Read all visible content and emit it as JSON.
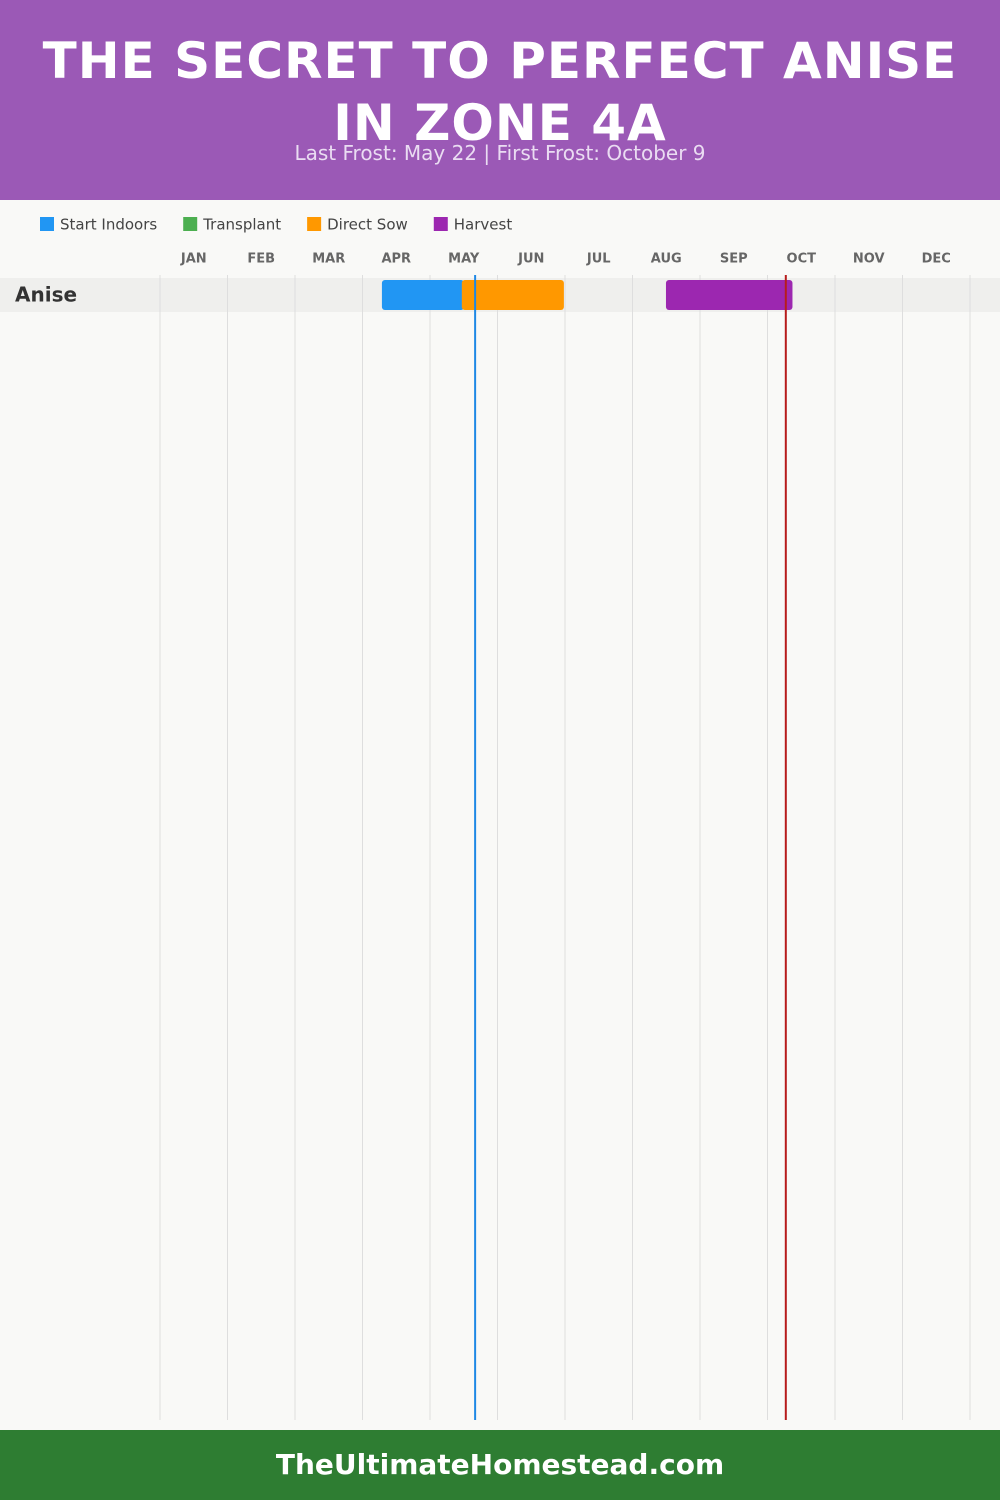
{
  "chart_data": {
    "type": "gantt",
    "title": "THE SECRET TO PERFECT ANISE IN ZONE 4A",
    "subtitle": "Last Frost: May 22 | First Frost: October 9",
    "categories": [
      "JAN",
      "FEB",
      "MAR",
      "APR",
      "MAY",
      "JUN",
      "JUL",
      "AUG",
      "SEP",
      "OCT",
      "NOV",
      "DEC"
    ],
    "xlim": [
      0,
      365
    ],
    "series": [
      {
        "name": "Start Indoors",
        "color": "#2196f3"
      },
      {
        "name": "Transplant",
        "color": "#4caf50"
      },
      {
        "name": "Direct Sow",
        "color": "#ff9800"
      },
      {
        "name": "Harvest",
        "color": "#9c27b0"
      }
    ],
    "rows": [
      {
        "name": "Anise",
        "tasks": [
          {
            "series": 0,
            "start": 100,
            "end": 137
          },
          {
            "series": 2,
            "start": 136,
            "end": 182
          },
          {
            "series": 3,
            "start": 228,
            "end": 285
          }
        ]
      }
    ],
    "frost_lines": [
      {
        "value": 142,
        "color": "#1e88e5"
      },
      {
        "value": 282,
        "color": "#b71c1c"
      }
    ],
    "grid": true,
    "footer": "TheUltimateHomestead.com"
  }
}
